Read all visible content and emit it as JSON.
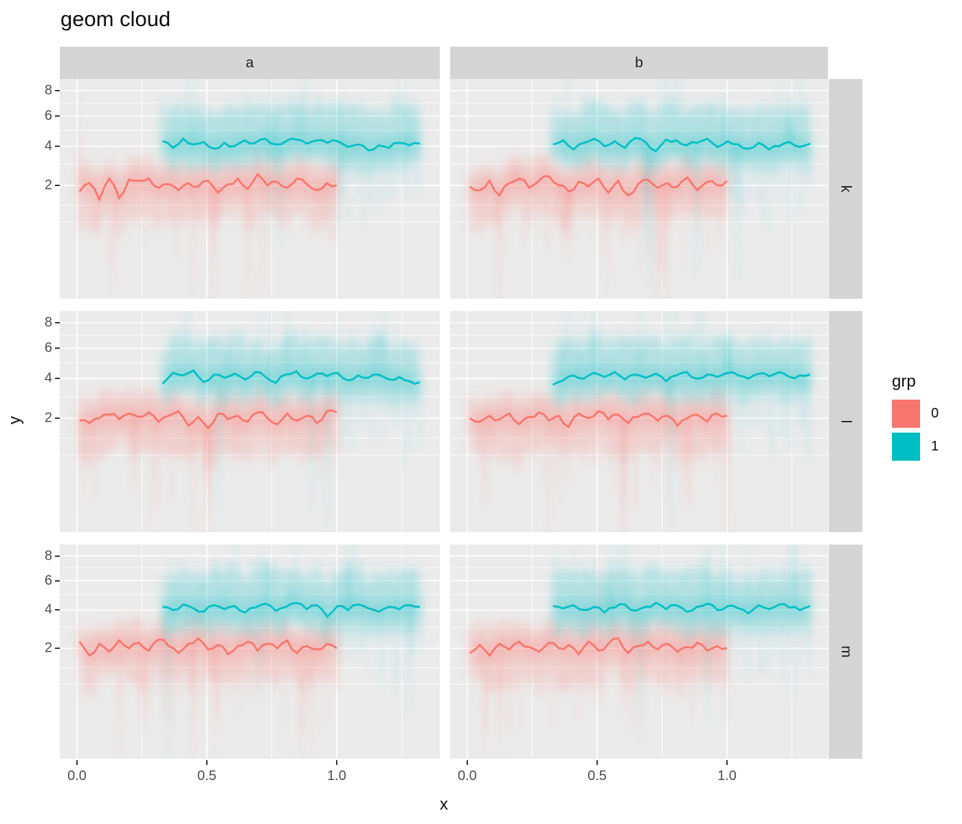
{
  "title": "geom cloud",
  "colors": {
    "red": "#F8766D",
    "teal": "#00BFC4",
    "panel_bg": "#EBEBEB",
    "strip_bg": "#D5D5D5",
    "gridline": "#FFFFFF",
    "tick_text": "#4D4D4D",
    "text": "#1A1A1A"
  },
  "chart_data": {
    "type": "line",
    "title": "geom cloud",
    "xlabel": "x",
    "ylabel": "y",
    "facet_cols": [
      "a",
      "b"
    ],
    "facet_rows": [
      "k",
      "l",
      "m"
    ],
    "x_ticks": [
      0.0,
      0.5,
      1.0
    ],
    "x_tick_labels": [
      "0.0",
      "0.5",
      "1.0"
    ],
    "x_minor_ticks": [
      0.25,
      0.75,
      1.25
    ],
    "y_ticks": [
      8,
      6,
      4,
      2
    ],
    "y_tick_labels": [
      "8",
      "6",
      "4",
      "2"
    ],
    "y_minor_ticks": [
      7,
      5,
      3,
      1.25,
      0.75
    ],
    "y_scale": "sqrt",
    "x_range": [
      -0.07,
      1.4
    ],
    "grid": true,
    "legend": {
      "title": "grp",
      "position": "right",
      "entries": [
        {
          "label": "0",
          "color": "#F8766D"
        },
        {
          "label": "1",
          "color": "#00BFC4"
        }
      ]
    },
    "note": "Each panel shows two jagged mean lines with fuzzy uncertainty clouds: grp 0 (red) near y=2 spanning x 0..1, grp 1 (teal) near y=4 spanning x 0.33..1.32",
    "panels": [
      {
        "row": "k",
        "col": "a",
        "series": [
          {
            "grp": "0",
            "x0": 0.01,
            "x1": 1.0,
            "y": [
              1.75,
              2.1,
              1.45,
              2.3,
              1.5,
              2.25,
              2.2,
              2.3,
              1.9,
              2.05,
              1.8,
              2.1,
              1.95,
              2.2,
              1.7,
              2.05,
              2.3,
              1.85,
              2.5,
              2.0,
              2.15,
              1.9,
              2.3,
              2.05,
              1.8,
              2.1,
              2.0
            ]
          },
          {
            "grp": "1",
            "x0": 0.33,
            "x1": 1.32,
            "y": [
              4.3,
              3.9,
              4.45,
              4.1,
              4.25,
              3.85,
              4.2,
              4.0,
              4.35,
              4.2,
              4.45,
              4.1,
              4.3,
              4.4,
              4.15,
              4.35,
              4.2,
              4.3,
              3.95,
              4.1,
              3.75,
              4.05,
              3.9,
              4.2,
              4.05,
              4.15
            ]
          }
        ]
      },
      {
        "row": "k",
        "col": "b",
        "series": [
          {
            "grp": "0",
            "x0": 0.01,
            "x1": 1.0,
            "y": [
              1.95,
              1.8,
              2.2,
              1.6,
              2.1,
              2.3,
              1.9,
              2.2,
              2.4,
              2.0,
              1.75,
              2.15,
              1.95,
              2.3,
              1.7,
              2.2,
              1.6,
              2.05,
              2.25,
              1.9,
              2.1,
              1.95,
              2.35,
              1.8,
              2.15,
              2.0,
              2.2
            ]
          },
          {
            "grp": "1",
            "x0": 0.33,
            "x1": 1.32,
            "y": [
              4.1,
              4.35,
              3.8,
              4.2,
              4.45,
              4.0,
              4.3,
              3.9,
              4.5,
              4.25,
              3.7,
              4.4,
              4.35,
              4.05,
              4.2,
              4.45,
              3.95,
              4.3,
              4.1,
              3.85,
              4.2,
              3.8,
              4.0,
              4.25,
              3.95,
              4.15
            ]
          }
        ]
      },
      {
        "row": "l",
        "col": "a",
        "series": [
          {
            "grp": "0",
            "x0": 0.01,
            "x1": 1.0,
            "y": [
              1.9,
              1.8,
              2.0,
              2.15,
              1.95,
              2.2,
              2.05,
              2.25,
              1.85,
              2.1,
              2.3,
              1.7,
              2.05,
              1.6,
              2.2,
              1.95,
              2.1,
              1.85,
              2.25,
              2.0,
              1.75,
              2.2,
              1.9,
              2.1,
              1.8,
              2.3,
              2.25
            ]
          },
          {
            "grp": "1",
            "x0": 0.33,
            "x1": 1.32,
            "y": [
              3.7,
              4.35,
              4.2,
              4.5,
              3.8,
              4.25,
              4.05,
              4.3,
              3.95,
              4.4,
              4.1,
              3.75,
              4.25,
              4.45,
              4.0,
              4.3,
              4.15,
              4.35,
              3.9,
              4.2,
              4.05,
              4.25,
              3.95,
              4.1,
              3.85,
              3.8
            ]
          }
        ]
      },
      {
        "row": "l",
        "col": "b",
        "series": [
          {
            "grp": "0",
            "x0": 0.01,
            "x1": 1.0,
            "y": [
              2.0,
              1.85,
              2.1,
              1.95,
              2.2,
              1.75,
              2.05,
              2.25,
              1.9,
              2.1,
              1.65,
              2.2,
              2.0,
              2.3,
              1.95,
              2.15,
              1.8,
              2.05,
              2.2,
              1.9,
              2.1,
              1.7,
              2.0,
              2.15,
              1.85,
              2.2,
              2.1
            ]
          },
          {
            "grp": "1",
            "x0": 0.33,
            "x1": 1.32,
            "y": [
              3.65,
              3.9,
              4.2,
              4.0,
              4.35,
              4.1,
              4.4,
              3.95,
              4.25,
              4.05,
              4.3,
              3.85,
              4.2,
              4.4,
              4.0,
              4.25,
              4.1,
              4.35,
              4.2,
              4.0,
              4.3,
              4.15,
              4.4,
              4.1,
              4.2,
              4.25
            ]
          }
        ]
      },
      {
        "row": "m",
        "col": "a",
        "series": [
          {
            "grp": "0",
            "x0": 0.01,
            "x1": 1.0,
            "y": [
              2.3,
              1.7,
              2.2,
              1.85,
              2.35,
              2.0,
              2.25,
              1.9,
              2.4,
              2.1,
              1.8,
              2.2,
              2.45,
              1.95,
              2.15,
              1.75,
              2.1,
              2.3,
              1.9,
              2.2,
              2.0,
              2.35,
              1.8,
              2.1,
              1.95,
              2.2,
              2.0
            ]
          },
          {
            "grp": "1",
            "x0": 0.33,
            "x1": 1.32,
            "y": [
              4.2,
              4.0,
              4.35,
              4.1,
              3.9,
              4.3,
              4.05,
              4.25,
              3.85,
              4.15,
              4.4,
              3.95,
              4.2,
              4.45,
              4.05,
              4.3,
              3.6,
              4.25,
              4.0,
              4.35,
              4.1,
              3.9,
              4.2,
              4.05,
              4.3,
              4.2
            ]
          }
        ]
      },
      {
        "row": "m",
        "col": "b",
        "series": [
          {
            "grp": "0",
            "x0": 0.01,
            "x1": 1.0,
            "y": [
              1.8,
              2.15,
              1.7,
              2.2,
              1.95,
              2.3,
              2.05,
              1.85,
              2.25,
              2.0,
              2.15,
              1.75,
              2.3,
              1.9,
              2.2,
              2.45,
              1.8,
              2.1,
              2.3,
              1.95,
              2.2,
              1.85,
              2.05,
              2.25,
              1.9,
              2.1,
              2.0
            ]
          },
          {
            "grp": "1",
            "x0": 0.33,
            "x1": 1.32,
            "y": [
              4.25,
              4.1,
              4.3,
              4.0,
              4.2,
              3.85,
              4.15,
              4.35,
              3.95,
              4.2,
              4.45,
              4.05,
              4.3,
              3.9,
              4.2,
              4.4,
              4.0,
              4.25,
              4.1,
              3.8,
              4.3,
              4.05,
              4.35,
              4.15,
              4.0,
              4.25
            ]
          }
        ]
      }
    ]
  }
}
